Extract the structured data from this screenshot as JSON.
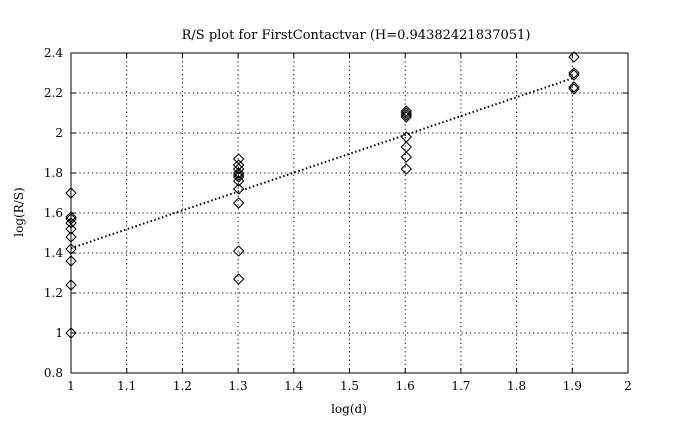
{
  "chart_data": {
    "type": "scatter",
    "title": "R/S plot for FirstContactvar (H=0.94382421837051)",
    "xlabel": "log(d)",
    "ylabel": "log(R/S)",
    "xlim": [
      1,
      2
    ],
    "ylim": [
      0.8,
      2.4
    ],
    "grid": true,
    "legend": "none",
    "x_ticks": [
      1,
      1.1,
      1.2,
      1.3,
      1.4,
      1.5,
      1.6,
      1.7,
      1.8,
      1.9,
      2
    ],
    "x_tick_labels": [
      "1",
      "1.1",
      "1.2",
      "1.3",
      "1.4",
      "1.5",
      "1.6",
      "1.7",
      "1.8",
      "1.9",
      "2"
    ],
    "y_ticks": [
      0.8,
      1,
      1.2,
      1.4,
      1.6,
      1.8,
      2,
      2.2,
      2.4
    ],
    "y_tick_labels": [
      "0.8",
      "1",
      "1.2",
      "1.4",
      "1.6",
      "1.8",
      "2",
      "2.2",
      "2.4"
    ],
    "marker": "diamond",
    "series": [
      {
        "x": [
          1,
          1,
          1,
          1,
          1,
          1,
          1,
          1,
          1,
          1,
          1.301,
          1.301,
          1.301,
          1.301,
          1.301,
          1.301,
          1.301,
          1.301,
          1.301,
          1.301,
          1.301,
          1.602,
          1.602,
          1.602,
          1.602,
          1.602,
          1.602,
          1.602,
          1.602,
          1.903,
          1.903,
          1.903,
          1.903,
          1.903
        ],
        "y": [
          1.0,
          1.24,
          1.36,
          1.42,
          1.48,
          1.52,
          1.55,
          1.57,
          1.58,
          1.7,
          1.27,
          1.41,
          1.65,
          1.72,
          1.76,
          1.78,
          1.8,
          1.82,
          1.84,
          1.87,
          1.79,
          1.82,
          1.88,
          1.93,
          1.98,
          2.08,
          2.1,
          2.11,
          2.09,
          2.22,
          2.23,
          2.29,
          2.3,
          2.38
        ]
      }
    ],
    "fit_line": {
      "x": [
        1,
        1.903
      ],
      "y": [
        1.424,
        2.276
      ]
    },
    "colors": {
      "marker": "#000000",
      "line": "#000000",
      "grid": "#000000"
    }
  }
}
